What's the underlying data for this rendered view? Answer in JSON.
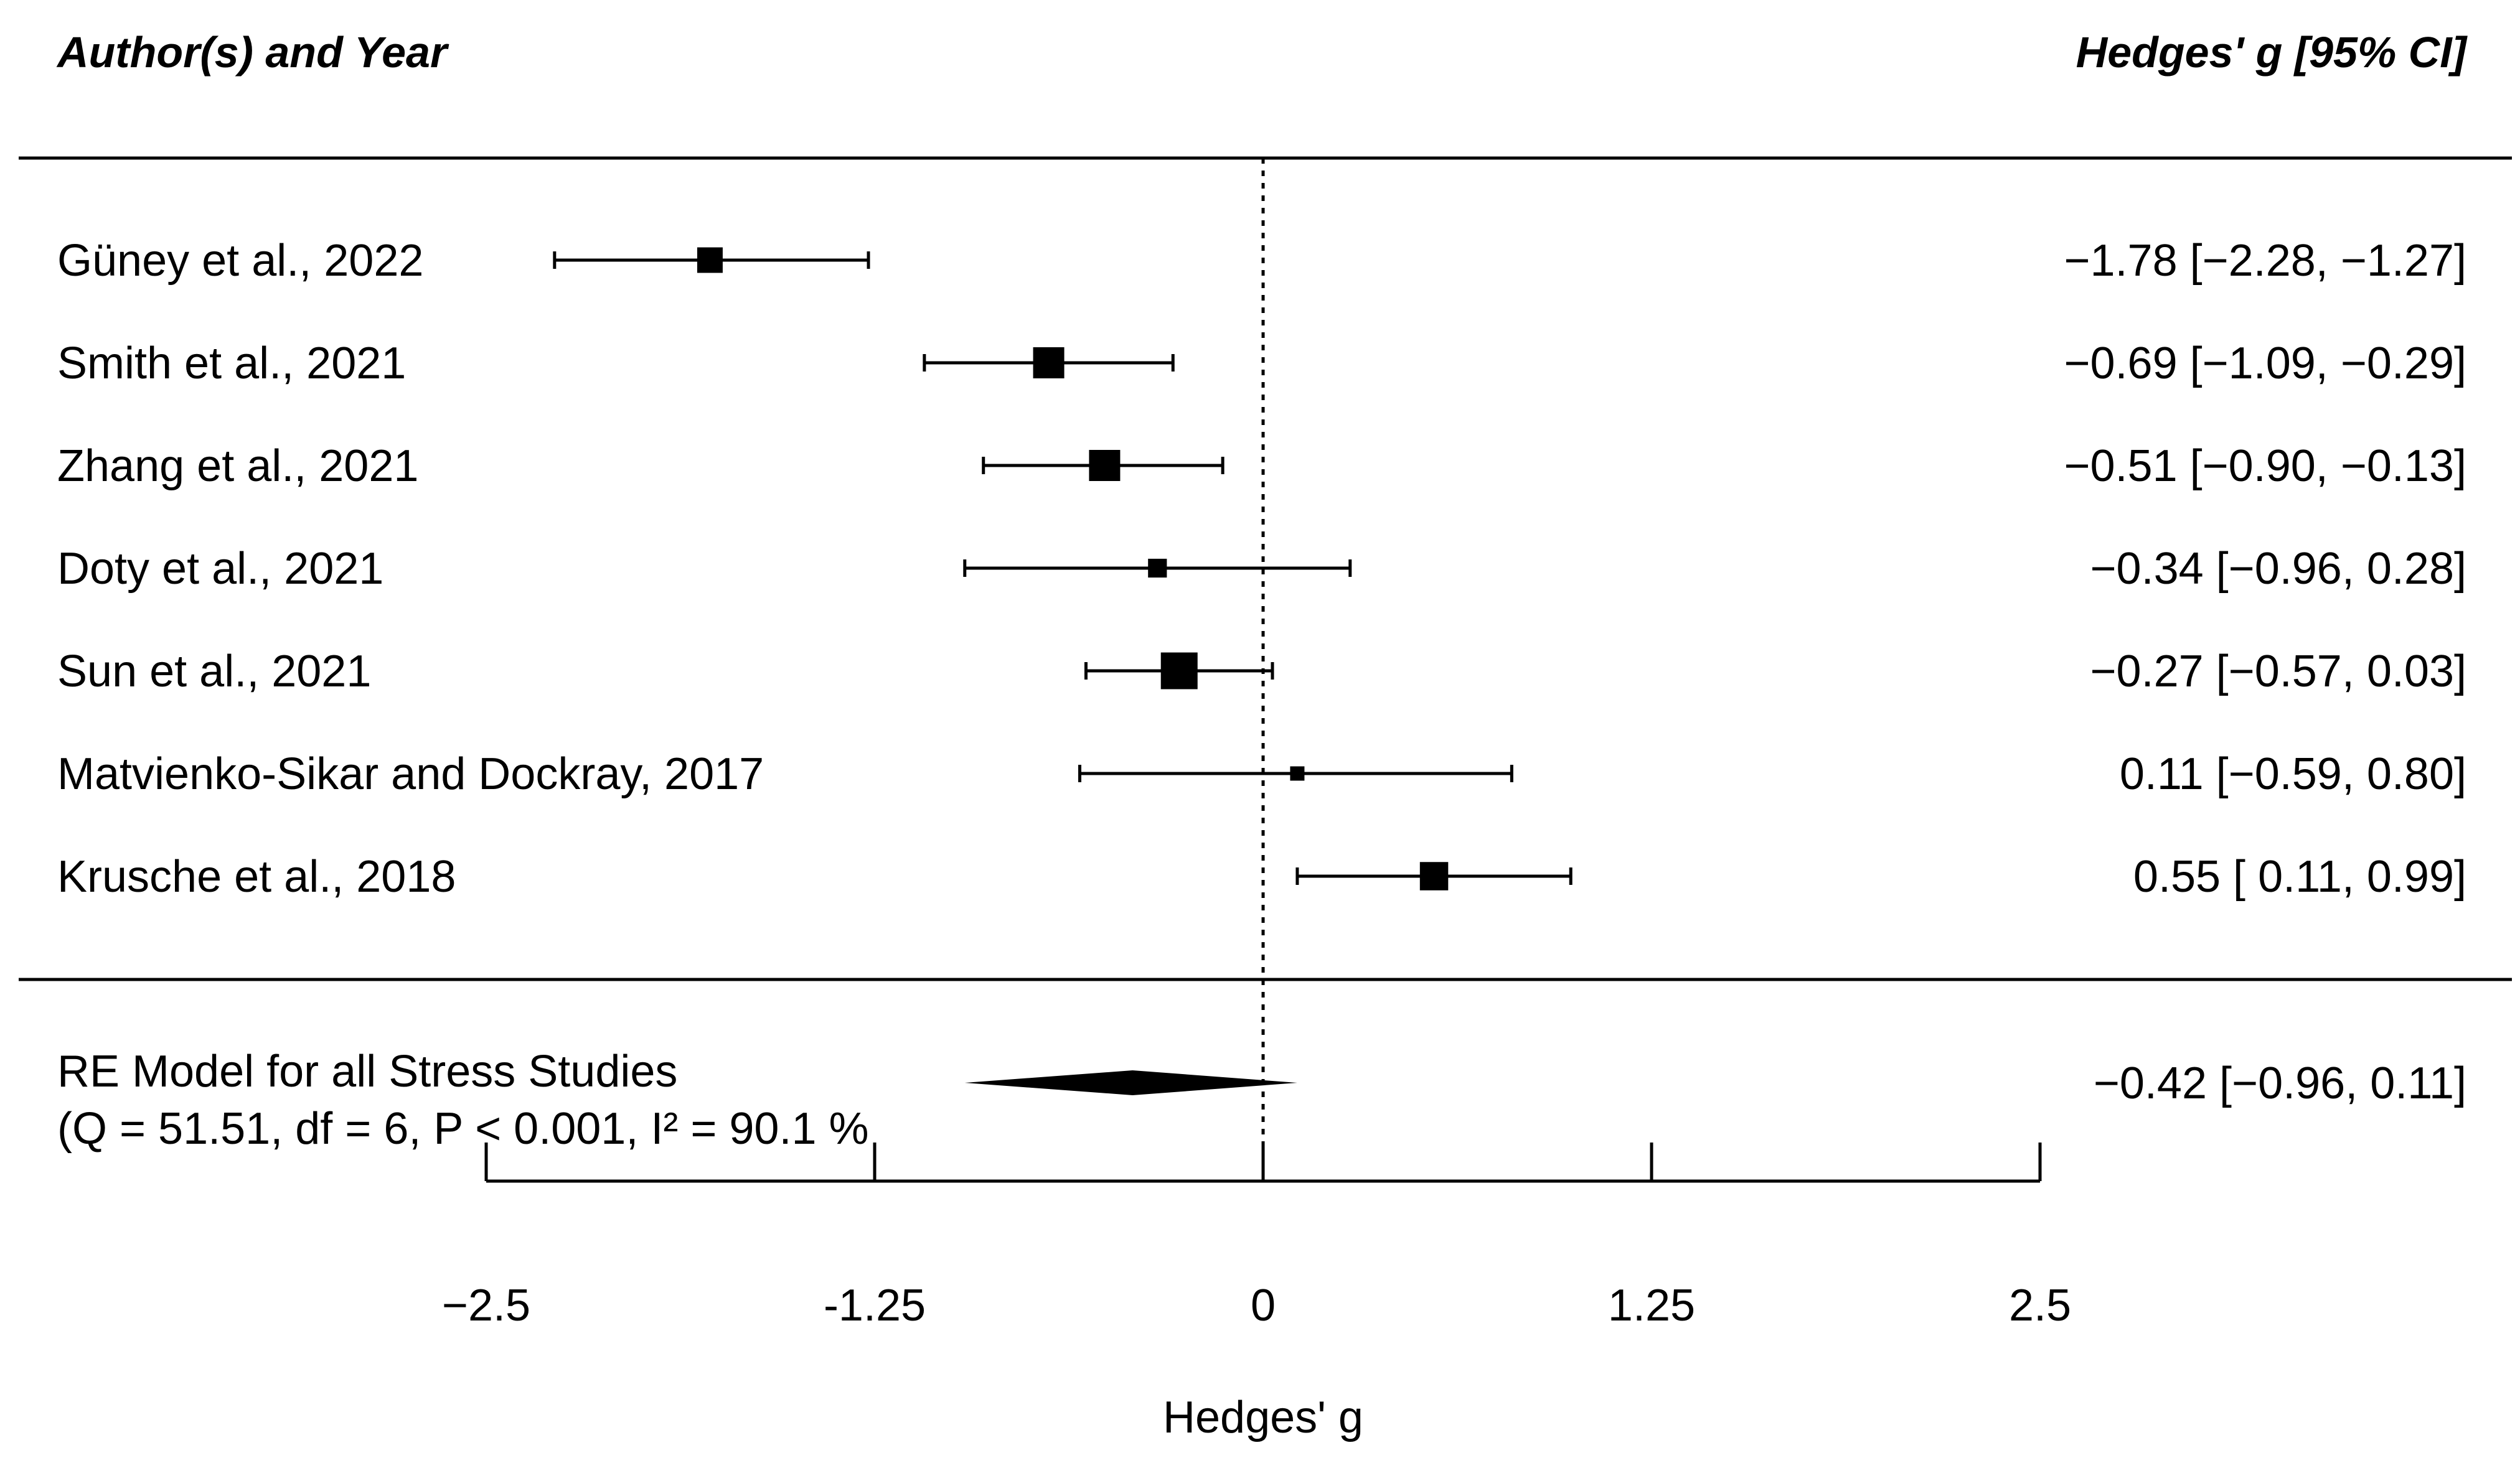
{
  "header": {
    "left_title": "Author(s) and Year",
    "right_title": "Hedges' g [95% CI]"
  },
  "chart_data": {
    "type": "forest",
    "xlabel": "Hedges' g",
    "xlim": [
      -2.5,
      2.5
    ],
    "reference_line": 0,
    "xticks": [
      -2.5,
      -1.25,
      0,
      1.25,
      2.5
    ],
    "xtick_labels": [
      "−2.5",
      "-1.25",
      "0",
      "1.25",
      "2.5"
    ],
    "studies": [
      {
        "label": "Güney et al., 2022",
        "estimate": -1.78,
        "ci_low": -2.28,
        "ci_high": -1.27,
        "weight": 3,
        "ci_text": "−1.78 [−2.28, −1.27]"
      },
      {
        "label": "Smith et al., 2021",
        "estimate": -0.69,
        "ci_low": -1.09,
        "ci_high": -0.29,
        "weight": 4,
        "ci_text": "−0.69 [−1.09, −0.29]"
      },
      {
        "label": "Zhang et al., 2021",
        "estimate": -0.51,
        "ci_low": -0.9,
        "ci_high": -0.13,
        "weight": 4,
        "ci_text": "−0.51 [−0.90, −0.13]"
      },
      {
        "label": "Doty et al., 2021",
        "estimate": -0.34,
        "ci_low": -0.96,
        "ci_high": 0.28,
        "weight": 1.8,
        "ci_text": "−0.34 [−0.96,  0.28]"
      },
      {
        "label": "Sun et al., 2021",
        "estimate": -0.27,
        "ci_low": -0.57,
        "ci_high": 0.03,
        "weight": 5,
        "ci_text": "−0.27 [−0.57,  0.03]"
      },
      {
        "label": "Matvienko-Sikar and Dockray, 2017",
        "estimate": 0.11,
        "ci_low": -0.59,
        "ci_high": 0.8,
        "weight": 1,
        "ci_text": "0.11 [−0.59,  0.80]"
      },
      {
        "label": "Krusche et al., 2018",
        "estimate": 0.55,
        "ci_low": 0.11,
        "ci_high": 0.99,
        "weight": 3.5,
        "ci_text": "0.55 [ 0.11,  0.99]"
      }
    ],
    "summary": {
      "label": "RE Model for all Stress Studies",
      "stats": "(Q = 51.51, df = 6, P < 0.001, I² = 90.1 %",
      "estimate": -0.42,
      "ci_low": -0.96,
      "ci_high": 0.11,
      "ci_text": "−0.42 [−0.96,  0.11]"
    }
  }
}
